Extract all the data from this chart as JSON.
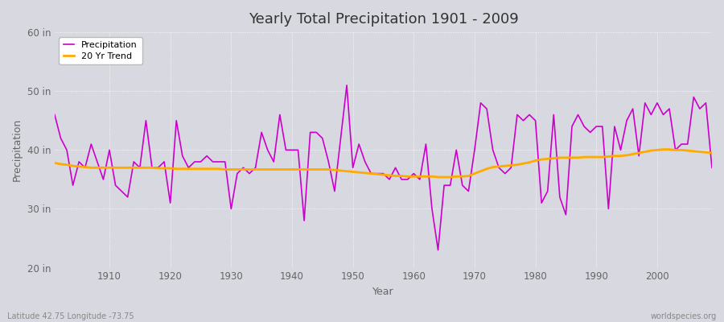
{
  "title": "Yearly Total Precipitation 1901 - 2009",
  "xlabel": "Year",
  "ylabel": "Precipitation",
  "xlim": [
    1901,
    2009
  ],
  "ylim": [
    20,
    60
  ],
  "yticks": [
    20,
    30,
    40,
    50,
    60
  ],
  "ytick_labels": [
    "20 in",
    "30 in",
    "40 in",
    "50 in",
    "60 in"
  ],
  "xticks": [
    1910,
    1920,
    1930,
    1940,
    1950,
    1960,
    1970,
    1980,
    1990,
    2000
  ],
  "bg_color": "#d8d8e0",
  "plot_bg_color": "#d8d8e0",
  "precip_color": "#cc00cc",
  "trend_color": "#ffaa00",
  "precip_label": "Precipitation",
  "trend_label": "20 Yr Trend",
  "subtitle_left": "Latitude 42.75 Longitude -73.75",
  "subtitle_right": "worldspecies.org",
  "years": [
    1901,
    1902,
    1903,
    1904,
    1905,
    1906,
    1907,
    1908,
    1909,
    1910,
    1911,
    1912,
    1913,
    1914,
    1915,
    1916,
    1917,
    1918,
    1919,
    1920,
    1921,
    1922,
    1923,
    1924,
    1925,
    1926,
    1927,
    1928,
    1929,
    1930,
    1931,
    1932,
    1933,
    1934,
    1935,
    1936,
    1937,
    1938,
    1939,
    1940,
    1941,
    1942,
    1943,
    1944,
    1945,
    1946,
    1947,
    1948,
    1949,
    1950,
    1951,
    1952,
    1953,
    1954,
    1955,
    1956,
    1957,
    1958,
    1959,
    1960,
    1961,
    1962,
    1963,
    1964,
    1965,
    1966,
    1967,
    1968,
    1969,
    1970,
    1971,
    1972,
    1973,
    1974,
    1975,
    1976,
    1977,
    1978,
    1979,
    1980,
    1981,
    1982,
    1983,
    1984,
    1985,
    1986,
    1987,
    1988,
    1989,
    1990,
    1991,
    1992,
    1993,
    1994,
    1995,
    1996,
    1997,
    1998,
    1999,
    2000,
    2001,
    2002,
    2003,
    2004,
    2005,
    2006,
    2007,
    2008,
    2009
  ],
  "precip": [
    46,
    42,
    40,
    34,
    38,
    37,
    41,
    38,
    35,
    40,
    34,
    33,
    32,
    38,
    37,
    45,
    37,
    37,
    38,
    31,
    45,
    39,
    37,
    38,
    38,
    39,
    38,
    38,
    38,
    30,
    36,
    37,
    36,
    37,
    43,
    40,
    38,
    46,
    40,
    40,
    40,
    28,
    43,
    43,
    42,
    38,
    33,
    42,
    51,
    37,
    41,
    38,
    36,
    36,
    36,
    35,
    37,
    35,
    35,
    36,
    35,
    41,
    30,
    23,
    34,
    34,
    40,
    34,
    33,
    40,
    48,
    47,
    40,
    37,
    36,
    37,
    46,
    45,
    46,
    45,
    31,
    33,
    46,
    32,
    29,
    44,
    46,
    44,
    43,
    44,
    44,
    30,
    44,
    40,
    45,
    47,
    39,
    48,
    46,
    48,
    46,
    47,
    40,
    41,
    41,
    49,
    47,
    48,
    37
  ],
  "trend": [
    37.8,
    37.6,
    37.5,
    37.3,
    37.2,
    37.1,
    37.0,
    37.0,
    37.0,
    37.0,
    37.0,
    37.0,
    37.0,
    37.0,
    37.0,
    37.0,
    37.0,
    36.9,
    36.9,
    36.9,
    36.8,
    36.8,
    36.8,
    36.8,
    36.8,
    36.8,
    36.8,
    36.8,
    36.7,
    36.7,
    36.7,
    36.7,
    36.7,
    36.7,
    36.7,
    36.7,
    36.7,
    36.7,
    36.7,
    36.7,
    36.7,
    36.7,
    36.7,
    36.7,
    36.7,
    36.7,
    36.6,
    36.5,
    36.4,
    36.3,
    36.2,
    36.1,
    36.0,
    35.9,
    35.8,
    35.7,
    35.6,
    35.6,
    35.5,
    35.5,
    35.5,
    35.5,
    35.5,
    35.4,
    35.4,
    35.4,
    35.5,
    35.5,
    35.6,
    36.0,
    36.4,
    36.8,
    37.1,
    37.2,
    37.3,
    37.4,
    37.5,
    37.7,
    37.9,
    38.2,
    38.4,
    38.5,
    38.6,
    38.7,
    38.7,
    38.7,
    38.7,
    38.8,
    38.8,
    38.8,
    38.8,
    38.9,
    39.0,
    39.0,
    39.1,
    39.3,
    39.5,
    39.7,
    39.9,
    40.0,
    40.1,
    40.1,
    40.0,
    40.0,
    39.9,
    39.8,
    39.7,
    39.6,
    39.5
  ]
}
